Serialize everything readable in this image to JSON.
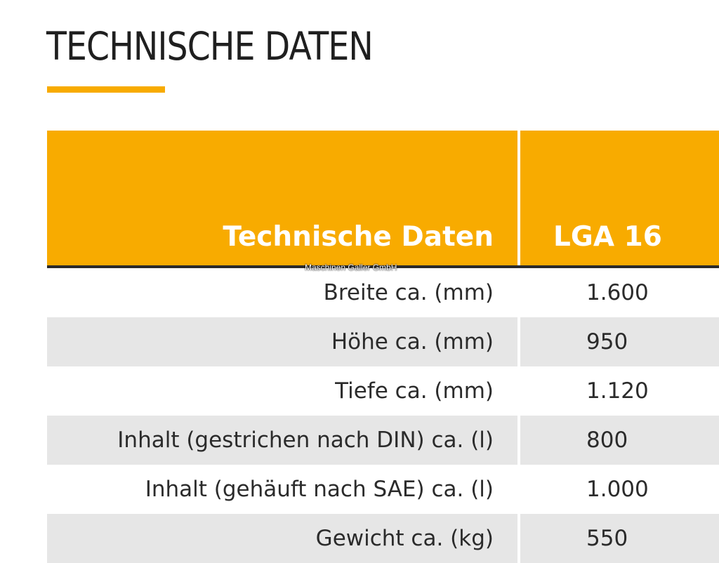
{
  "page": {
    "title": "TECHNISCHE DATEN"
  },
  "table": {
    "header": {
      "label": "Technische Daten",
      "model": "LGA 16"
    },
    "rows": [
      {
        "label": "Breite ca. (mm)",
        "value": "1.600"
      },
      {
        "label": "Höhe ca. (mm)",
        "value": "950"
      },
      {
        "label": "Tiefe ca. (mm)",
        "value": "1.120"
      },
      {
        "label": "Inhalt (gestrichen nach DIN) ca. (l)",
        "value": "800"
      },
      {
        "label": "Inhalt (gehäuft nach SAE) ca. (l)",
        "value": "1.000"
      },
      {
        "label": "Gewicht ca. (kg)",
        "value": "550"
      }
    ]
  },
  "watermark": {
    "text": "Maschinen Galler GmbH"
  },
  "colors": {
    "accent": "#f8ab00",
    "row_stripe": "#e6e6e6",
    "header_text": "#ffffff",
    "body_text": "#2b2b2b"
  }
}
